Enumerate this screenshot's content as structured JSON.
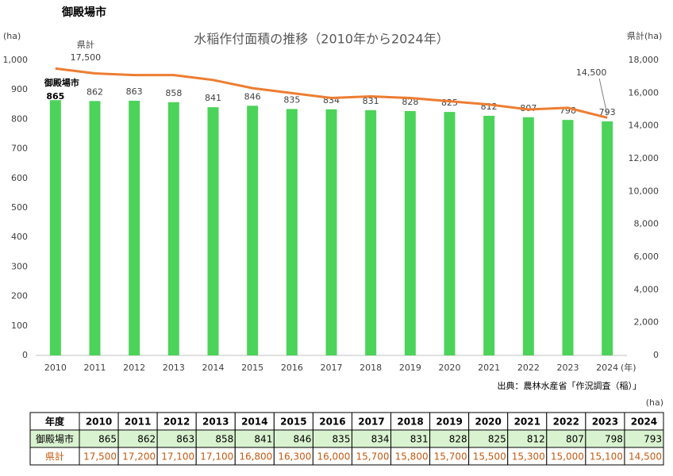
{
  "page_title": "御殿場市",
  "chart_data": {
    "type": "bar",
    "title": "水稲作付面積の推移（2010年から2024年）",
    "y_label": "(ha)",
    "y2_label": "県計(ha)",
    "x_label": "(年)",
    "source": "出典：農林水産省「作況調査（稲）」",
    "categories": [
      "2010",
      "2011",
      "2012",
      "2013",
      "2014",
      "2015",
      "2016",
      "2017",
      "2018",
      "2019",
      "2020",
      "2021",
      "2022",
      "2023",
      "2024"
    ],
    "series": [
      {
        "name": "御殿場市",
        "type": "bar",
        "color": "#4cd35a",
        "values": [
          865,
          862,
          863,
          858,
          841,
          846,
          835,
          834,
          831,
          828,
          825,
          812,
          807,
          798,
          793
        ]
      },
      {
        "name": "県計",
        "type": "line",
        "axis": "y2",
        "color": "#ed7d31",
        "values": [
          17500,
          17200,
          17100,
          17100,
          16800,
          16300,
          16000,
          15700,
          15800,
          15700,
          15500,
          15300,
          15000,
          15100,
          14500
        ],
        "value_labels": [
          "17,500",
          null,
          null,
          null,
          null,
          null,
          null,
          null,
          null,
          null,
          null,
          null,
          null,
          null,
          "14,500"
        ]
      }
    ],
    "ylim": [
      0,
      1000
    ],
    "yticks": [
      0,
      100,
      200,
      300,
      400,
      500,
      600,
      700,
      800,
      900,
      {
        "value": 1000,
        "label": "1,000"
      }
    ],
    "y2lim": [
      0,
      18000
    ],
    "y2ticks": [
      0,
      {
        "value": 2000,
        "label": "2,000"
      },
      {
        "value": 4000,
        "label": "4,000"
      },
      {
        "value": 6000,
        "label": "6,000"
      },
      {
        "value": 8000,
        "label": "8,000"
      },
      {
        "value": 10000,
        "label": "10,000"
      },
      {
        "value": 12000,
        "label": "12,000"
      },
      {
        "value": 14000,
        "label": "14,000"
      },
      {
        "value": 16000,
        "label": "16,000"
      },
      {
        "value": 18000,
        "label": "18,000"
      }
    ],
    "grid": false
  },
  "table": {
    "unit": "(ha)",
    "header": [
      "年度",
      "2010",
      "2011",
      "2012",
      "2013",
      "2014",
      "2015",
      "2016",
      "2017",
      "2018",
      "2019",
      "2020",
      "2021",
      "2022",
      "2023",
      "2024"
    ],
    "rows": [
      [
        "御殿場市",
        "865",
        "862",
        "863",
        "858",
        "841",
        "846",
        "835",
        "834",
        "831",
        "828",
        "825",
        "812",
        "807",
        "798",
        "793"
      ],
      [
        "県計",
        "17,500",
        "17,200",
        "17,100",
        "17,100",
        "16,800",
        "16,300",
        "16,000",
        "15,700",
        "15,800",
        "15,700",
        "15,500",
        "15,300",
        "15,000",
        "15,100",
        "14,500"
      ]
    ]
  }
}
